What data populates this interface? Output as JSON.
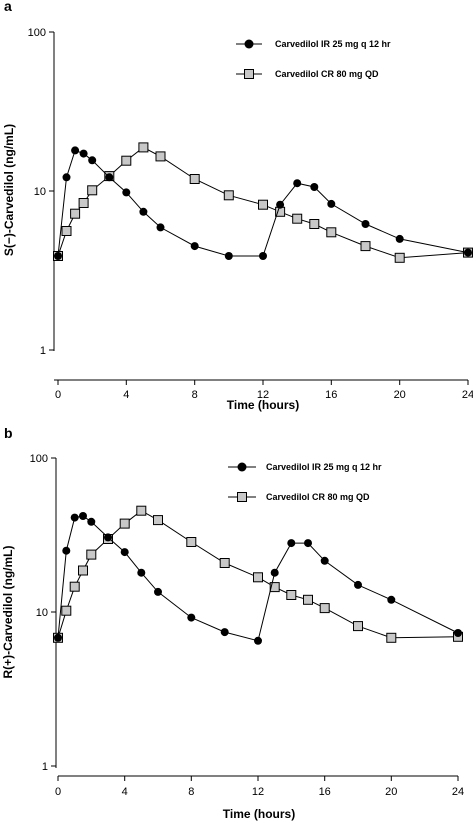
{
  "chart_data": [
    {
      "panel_letter": "a",
      "type": "line",
      "ylabel": "S(−)-Carvedilol (ng/mL)",
      "xlabel": "Time (hours)",
      "yscale": "log",
      "ylim": [
        1,
        100
      ],
      "xlim": [
        0,
        24
      ],
      "x_ticks": [
        "0",
        "4",
        "8",
        "12",
        "16",
        "20",
        "24"
      ],
      "y_ticks": [
        "1",
        "10",
        "100"
      ],
      "legend_position": "top-right",
      "series": [
        {
          "name": "Carvedilol IR 25 mg q 12 hr",
          "marker": "circle",
          "color": "#000000",
          "x": [
            0,
            0.5,
            1,
            1.5,
            2,
            3,
            4,
            5,
            6,
            8,
            10,
            12,
            13,
            14,
            15,
            16,
            18,
            20,
            24
          ],
          "y": [
            3.9,
            12.2,
            18.0,
            17.2,
            15.6,
            12.2,
            9.8,
            7.4,
            5.9,
            4.5,
            3.9,
            3.9,
            8.2,
            11.2,
            10.6,
            8.3,
            6.2,
            5.0,
            4.1
          ]
        },
        {
          "name": "Carvedilol CR 80 mg QD",
          "marker": "square",
          "color": "#c8c8c8",
          "x": [
            0,
            0.5,
            1,
            1.5,
            2,
            3,
            4,
            5,
            6,
            8,
            10,
            12,
            13,
            14,
            15,
            16,
            18,
            20,
            24
          ],
          "y": [
            3.9,
            5.6,
            7.2,
            8.4,
            10.1,
            12.4,
            15.5,
            18.8,
            16.5,
            11.9,
            9.4,
            8.2,
            7.4,
            6.7,
            6.2,
            5.5,
            4.5,
            3.8,
            4.1
          ]
        }
      ]
    },
    {
      "panel_letter": "b",
      "type": "line",
      "ylabel": "R(+)-Carvedilol (ng/mL)",
      "xlabel": "Time (hours)",
      "yscale": "log",
      "ylim": [
        1,
        100
      ],
      "xlim": [
        0,
        24
      ],
      "x_ticks": [
        "0",
        "4",
        "8",
        "12",
        "16",
        "20",
        "24"
      ],
      "y_ticks": [
        "1",
        "10",
        "100"
      ],
      "legend_position": "top-right",
      "series": [
        {
          "name": "Carvedilol IR 25 mg q 12 hr",
          "marker": "circle",
          "color": "#000000",
          "x": [
            0,
            0.5,
            1,
            1.5,
            2,
            3,
            4,
            5,
            6,
            8,
            10,
            12,
            13,
            14,
            15,
            16,
            18,
            20,
            24
          ],
          "y": [
            6.8,
            25.0,
            41.0,
            42.0,
            38.5,
            30.5,
            24.5,
            18.0,
            13.5,
            9.2,
            7.4,
            6.5,
            18.0,
            28.0,
            28.0,
            21.5,
            15.0,
            12.0,
            7.3
          ]
        },
        {
          "name": "Carvedilol CR 80 mg QD",
          "marker": "square",
          "color": "#c8c8c8",
          "x": [
            0,
            0.5,
            1,
            1.5,
            2,
            3,
            4,
            5,
            6,
            8,
            10,
            12,
            13,
            14,
            15,
            16,
            18,
            20,
            24
          ],
          "y": [
            6.8,
            10.2,
            14.6,
            18.6,
            23.6,
            29.8,
            37.5,
            45.5,
            39.5,
            28.5,
            20.8,
            16.8,
            14.5,
            12.9,
            12.0,
            10.6,
            8.1,
            6.8,
            6.9
          ]
        }
      ]
    }
  ]
}
